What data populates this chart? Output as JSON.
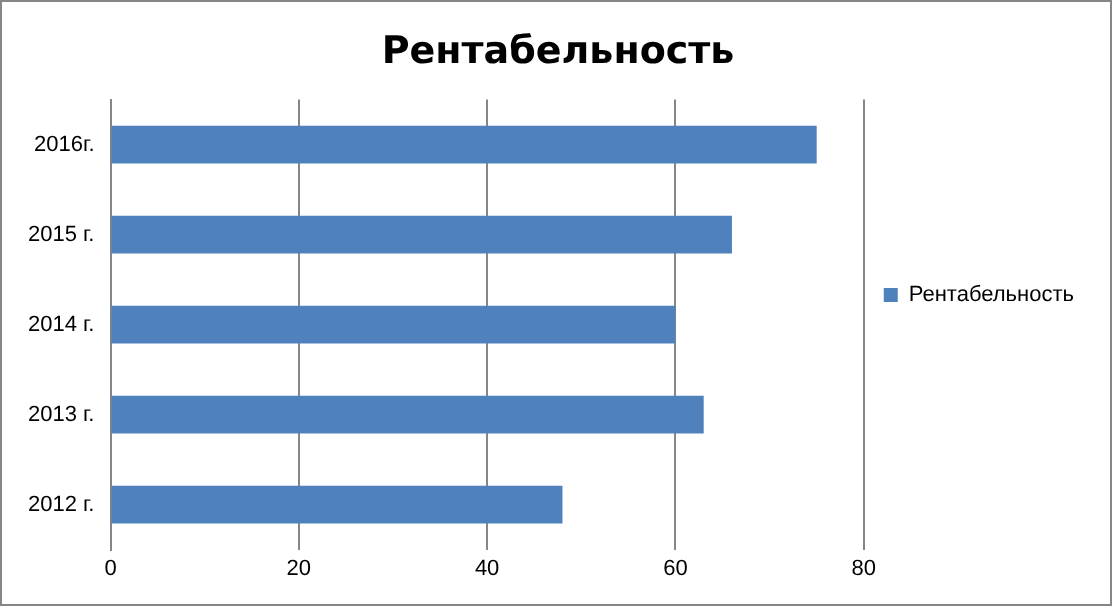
{
  "chart_data": {
    "type": "bar",
    "orientation": "horizontal",
    "title": "Рентабельность",
    "categories": [
      "2016г.",
      "2015 г.",
      "2014 г.",
      "2013 г.",
      "2012 г."
    ],
    "series": [
      {
        "name": "Рентабельность",
        "color": "#4f81bd",
        "values": [
          75,
          66,
          60,
          63,
          48
        ]
      }
    ],
    "xlim": [
      0,
      80
    ],
    "xticks": [
      0,
      20,
      40,
      60,
      80
    ],
    "grid": "x",
    "legend": "right"
  }
}
